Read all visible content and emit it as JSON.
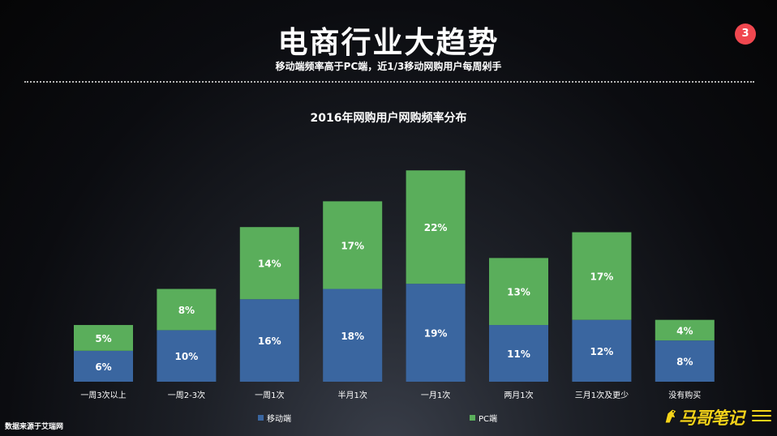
{
  "header": {
    "title": "电商行业大趋势",
    "subtitle": "移动端频率高于PC端，近1/3移动网购用户每周剁手",
    "page_number": "3"
  },
  "footer": {
    "source": "数据来源于艾瑞网",
    "logo_text": "马哥笔记"
  },
  "colors": {
    "mobile": "#3a66a0",
    "pc": "#5aae5b",
    "badge": "#f0474f"
  },
  "chart_data": {
    "type": "bar",
    "stacked": true,
    "title": "2016年网购用户网购频率分布",
    "categories": [
      "一周3次以上",
      "一周2-3次",
      "一周1次",
      "半月1次",
      "一月1次",
      "两月1次",
      "三月1次及更少",
      "没有购买"
    ],
    "series": [
      {
        "name": "移动端",
        "values": [
          6,
          10,
          16,
          18,
          19,
          11,
          12,
          8
        ],
        "labels": [
          "6%",
          "10%",
          "16%",
          "18%",
          "19%",
          "11%",
          "12%",
          "8%"
        ]
      },
      {
        "name": "PC端",
        "values": [
          5,
          8,
          14,
          17,
          22,
          13,
          17,
          4
        ],
        "labels": [
          "5%",
          "8%",
          "14%",
          "17%",
          "22%",
          "13%",
          "17%",
          "4%"
        ]
      }
    ],
    "legend": "bottom",
    "grid": false
  }
}
